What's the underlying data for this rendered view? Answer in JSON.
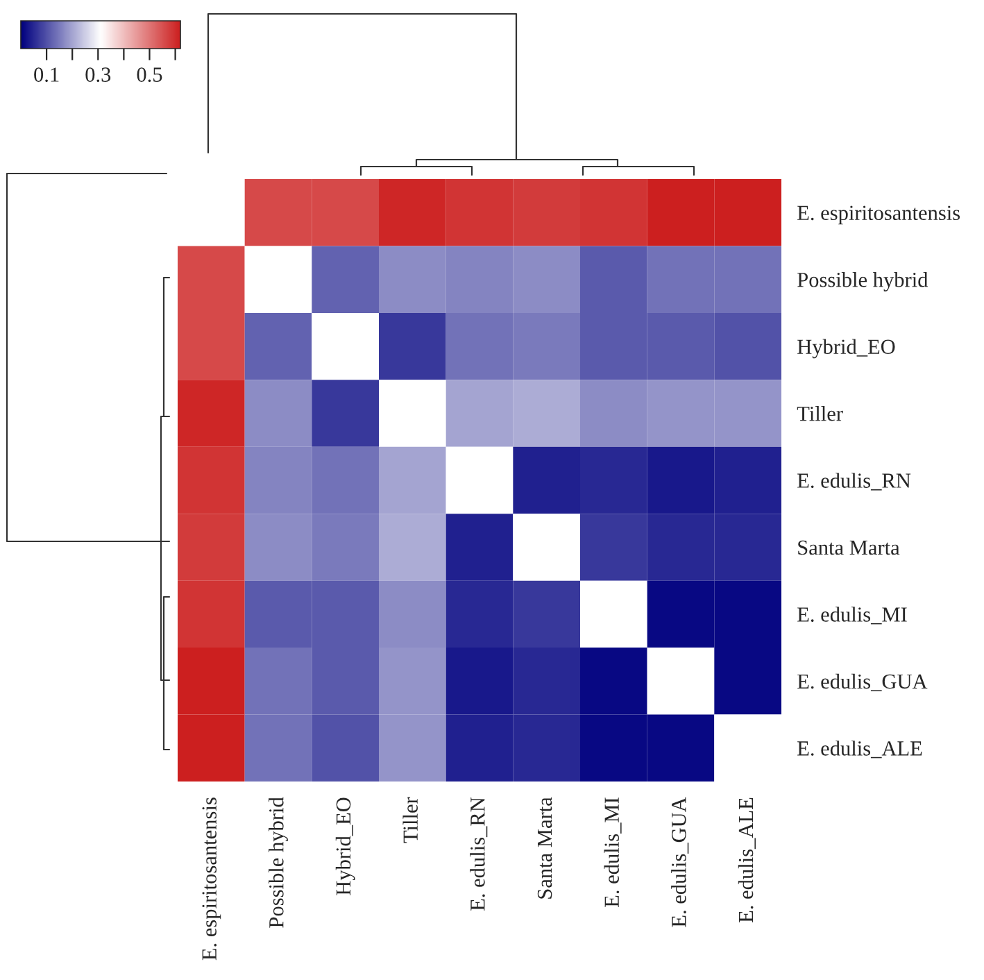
{
  "chart_data": {
    "type": "heatmap",
    "categories": [
      "E. espiritosantensis",
      "Possible hybrid",
      "Hybrid_EO",
      "Tiller",
      "E. edulis_RN",
      "Santa Marta",
      "E. edulis_MI",
      "E. edulis_GUA",
      "E. edulis_ALE"
    ],
    "y_categories": [
      "E. espiritosantensis",
      "Possible hybrid",
      "Hybrid_EO",
      "Tiller",
      "E. edulis_RN",
      "Santa Marta",
      "E. edulis_MI",
      "E. edulis_GUA",
      "E. edulis_ALE"
    ],
    "cells": [
      [
        null,
        0.56,
        0.56,
        0.61,
        0.59,
        0.58,
        0.59,
        0.62,
        0.62
      ],
      [
        0.56,
        null,
        0.12,
        0.17,
        0.16,
        0.17,
        0.11,
        0.14,
        0.14
      ],
      [
        0.56,
        0.12,
        null,
        0.07,
        0.14,
        0.15,
        0.11,
        0.11,
        0.1
      ],
      [
        0.61,
        0.17,
        0.07,
        null,
        0.2,
        0.21,
        0.17,
        0.18,
        0.18
      ],
      [
        0.59,
        0.16,
        0.14,
        0.2,
        null,
        0.04,
        0.05,
        0.03,
        0.04
      ],
      [
        0.58,
        0.17,
        0.15,
        0.21,
        0.04,
        null,
        0.07,
        0.05,
        0.05
      ],
      [
        0.59,
        0.11,
        0.11,
        0.17,
        0.05,
        0.07,
        null,
        0.01,
        0.01
      ],
      [
        0.62,
        0.14,
        0.11,
        0.18,
        0.03,
        0.05,
        0.01,
        null,
        0.01
      ],
      [
        0.62,
        0.14,
        0.1,
        0.18,
        0.04,
        0.05,
        0.01,
        0.01,
        null
      ]
    ],
    "clim": [
      0,
      0.62
    ],
    "cticks": [
      {
        "value": 0.1,
        "label": "0.1"
      },
      {
        "value": 0.2,
        "label": null
      },
      {
        "value": 0.3,
        "label": "0.3"
      },
      {
        "value": 0.4,
        "label": null
      },
      {
        "value": 0.5,
        "label": "0.5"
      },
      {
        "value": 0.6,
        "label": null
      }
    ]
  }
}
